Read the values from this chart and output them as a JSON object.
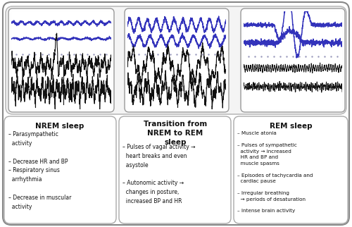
{
  "fig_width": 5.0,
  "fig_height": 3.22,
  "bg_color": "#ffffff",
  "panel_titles": [
    "NREM sleep",
    "Transition from\nNREM to REM\nsleep",
    "REM sleep"
  ],
  "nrem_bullets": "– Parasympathetic\n  activity\n\n– Decrease HR and BP\n– Respiratory sinus\n  arrhythmia\n\n– Decrease in muscular\n  activity",
  "trans_bullets": "– Pulses of vagal activity →\n  heart breaks and even\n  asystole\n\n– Autonomic activity →\n  changes in posture,\n  increased BP and HR",
  "rem_bullets": "– Muscle atonia\n\n– Pulses of sympathetic\n  activity → increased\n  HR and BP and\n  muscle spasms\n\n– Episodes of tachycardia and\n  cardiac pause\n\n– Irregular breathing\n  → periods of desaturation\n\n– Intense brain activity",
  "wave_blue": "#3333bb",
  "wave_black": "#111111",
  "wave_bg": "#ffffff",
  "dot_color": "#9999bb",
  "outer_box_color": "#888888",
  "panel_box_color": "#aaaaaa",
  "text_box_color": "#999999"
}
